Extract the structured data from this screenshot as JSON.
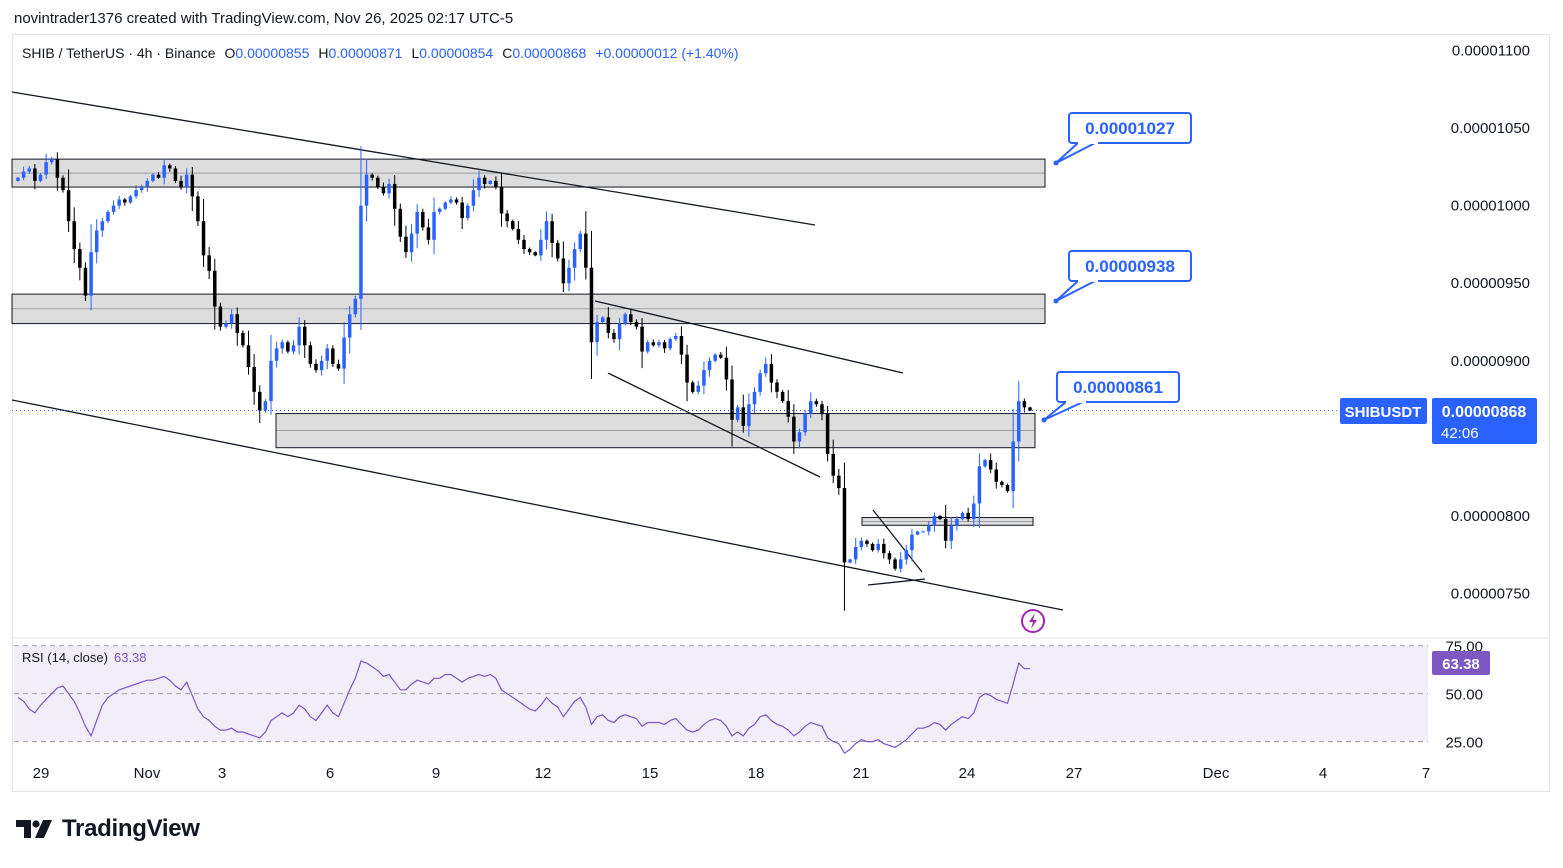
{
  "attribution": "novintrader1376 created with TradingView.com, Nov 26, 2025 02:17 UTC-5",
  "brand": "TradingView",
  "legend": {
    "symbol": "SHIB / TetherUS · 4h · Binance",
    "open_label": "O",
    "open": "0.00000855",
    "high_label": "H",
    "high": "0.00000871",
    "low_label": "L",
    "low": "0.00000854",
    "close_label": "C",
    "close": "0.00000868",
    "change": "+0.00000012 (+1.40%)"
  },
  "price_tag": {
    "symbol": "SHIBUSDT",
    "price": "0.00000868",
    "countdown": "42:06"
  },
  "callouts": [
    {
      "text": "0.00001027",
      "price": 1.027e-05
    },
    {
      "text": "0.00000938",
      "price": 9.38e-06
    },
    {
      "text": "0.00000861",
      "price": 8.61e-06
    }
  ],
  "rsi": {
    "label": "RSI (14, close)",
    "value": "63.38",
    "levels": [
      75,
      50,
      25
    ]
  },
  "colors": {
    "up": "#2962ff",
    "down": "#000000",
    "rsi": "#7e57c2",
    "zone": "#d1d1d1",
    "accent": "#2962ff"
  },
  "chart_data": {
    "type": "candlestick",
    "title": "SHIB / TetherUS · 4h · Binance",
    "x_ticks": [
      "29",
      "Nov",
      "3",
      "6",
      "9",
      "12",
      "15",
      "18",
      "21",
      "24",
      "27",
      "Dec",
      "4",
      "7"
    ],
    "y_ticks": [
      "0.00001100",
      "0.00001050",
      "0.00001000",
      "0.00000950",
      "0.00000900",
      "0.00000850",
      "0.00000800",
      "0.00000750"
    ],
    "ylim": [
      7.22e-06,
      1.11e-05
    ],
    "rsi_ticks": [
      "75.00",
      "50.00",
      "25.00"
    ],
    "rsi_ylim": [
      17,
      79
    ],
    "zones": [
      {
        "top": 1.03e-05,
        "bottom": 1.012e-05
      },
      {
        "top": 9.43e-06,
        "bottom": 9.24e-06
      },
      {
        "top": 8.66e-06,
        "bottom": 8.44e-06
      },
      {
        "top": 7.99e-06,
        "bottom": 7.94e-06
      }
    ],
    "closes": [
      1.018e-05,
      1.022e-05,
      1.024e-05,
      1.016e-05,
      1.02e-05,
      1.028e-05,
      1.03e-05,
      1.018e-05,
      1.01e-05,
      9.9e-06,
      9.72e-06,
      9.6e-06,
      9.42e-06,
      9.7e-06,
      9.84e-06,
      9.9e-06,
      9.96e-06,
      1e-05,
      1.004e-05,
      1.002e-05,
      1.006e-05,
      1.01e-05,
      1.012e-05,
      1.016e-05,
      1.02e-05,
      1.018e-05,
      1.026e-05,
      1.024e-05,
      1.016e-05,
      1.012e-05,
      1.02e-05,
      1.006e-05,
      9.9e-06,
      9.68e-06,
      9.58e-06,
      9.35e-06,
      9.22e-06,
      9.24e-06,
      9.3e-06,
      9.18e-06,
      9.1e-06,
      8.96e-06,
      8.8e-06,
      8.68e-06,
      8.74e-06,
      9e-06,
      9.08e-06,
      9.12e-06,
      9.06e-06,
      9.1e-06,
      9.22e-06,
      9.1e-06,
      8.98e-06,
      8.94e-06,
      9e-06,
      9.08e-06,
      8.98e-06,
      8.95e-06,
      9.15e-06,
      9.3e-06,
      9.4e-06,
      1e-05,
      1.02e-05,
      1.018e-05,
      1.012e-05,
      1.008e-05,
      1.014e-05,
      9.98e-06,
      9.8e-06,
      9.7e-06,
      9.82e-06,
      9.96e-06,
      9.86e-06,
      9.78e-06,
      9.96e-06,
      9.98e-06,
      1.002e-05,
      1.004e-05,
      1.002e-05,
      9.92e-06,
      1e-05,
      1.01e-05,
      1.018e-05,
      1.014e-05,
      1.016e-05,
      1.012e-05,
      9.95e-06,
      9.9e-06,
      9.85e-06,
      9.78e-06,
      9.72e-06,
      9.7e-06,
      9.68e-06,
      9.78e-06,
      9.9e-06,
      9.76e-06,
      9.66e-06,
      9.5e-06,
      9.6e-06,
      9.72e-06,
      9.82e-06,
      9.6e-06,
      9.12e-06,
      9.25e-06,
      9.28e-06,
      9.18e-06,
      9.14e-06,
      9.24e-06,
      9.3e-06,
      9.25e-06,
      9.22e-06,
      9.06e-06,
      9.12e-06,
      9.1e-06,
      9.12e-06,
      9.08e-06,
      9.14e-06,
      9.16e-06,
      9.04e-06,
      8.86e-06,
      8.8e-06,
      8.84e-06,
      8.94e-06,
      9e-06,
      9.04e-06,
      9.02e-06,
      8.88e-06,
      8.62e-06,
      8.7e-06,
      8.58e-06,
      8.72e-06,
      8.8e-06,
      8.92e-06,
      8.98e-06,
      8.86e-06,
      8.8e-06,
      8.74e-06,
      8.64e-06,
      8.48e-06,
      8.54e-06,
      8.66e-06,
      8.74e-06,
      8.72e-06,
      8.66e-06,
      8.4e-06,
      8.26e-06,
      8.18e-06,
      7.7e-06,
      7.72e-06,
      7.8e-06,
      7.84e-06,
      7.82e-06,
      7.78e-06,
      7.82e-06,
      7.76e-06,
      7.72e-06,
      7.66e-06,
      7.72e-06,
      7.78e-06,
      7.88e-06,
      7.9e-06,
      7.9e-06,
      7.94e-06,
      8e-06,
      7.98e-06,
      7.84e-06,
      7.94e-06,
      7.98e-06,
      8.02e-06,
      7.98e-06,
      8.08e-06,
      8.32e-06,
      8.36e-06,
      8.3e-06,
      8.22e-06,
      8.2e-06,
      8.16e-06,
      8.48e-06,
      8.74e-06,
      8.7e-06,
      8.68e-06
    ],
    "rsi_values": [
      48,
      46,
      42,
      40,
      44,
      47,
      50,
      53,
      54,
      50,
      46,
      40,
      33,
      28,
      36,
      44,
      48,
      50,
      52,
      53,
      54,
      55,
      56,
      57,
      57,
      58,
      59,
      57,
      54,
      52,
      56,
      49,
      42,
      38,
      36,
      33,
      31,
      31,
      32,
      30,
      30,
      29,
      28,
      27,
      30,
      36,
      38,
      40,
      38,
      40,
      44,
      42,
      38,
      36,
      40,
      44,
      40,
      38,
      45,
      52,
      58,
      67,
      66,
      64,
      62,
      59,
      60,
      56,
      52,
      52,
      55,
      57,
      56,
      55,
      58,
      58,
      60,
      60,
      58,
      56,
      58,
      59,
      60,
      59,
      60,
      58,
      52,
      50,
      48,
      46,
      44,
      42,
      41,
      44,
      48,
      45,
      43,
      38,
      42,
      46,
      48,
      43,
      34,
      38,
      39,
      36,
      35,
      38,
      39,
      38,
      37,
      33,
      35,
      35,
      35,
      34,
      36,
      37,
      34,
      31,
      30,
      31,
      34,
      36,
      37,
      36,
      33,
      28,
      30,
      28,
      32,
      34,
      38,
      39,
      36,
      34,
      33,
      31,
      28,
      30,
      33,
      35,
      34,
      33,
      27,
      25,
      24,
      19,
      21,
      24,
      26,
      25,
      25,
      26,
      24,
      23,
      22,
      24,
      26,
      29,
      32,
      32,
      33,
      35,
      34,
      31,
      34,
      36,
      38,
      37,
      40,
      48,
      50,
      49,
      47,
      46,
      45,
      55,
      66,
      63,
      63
    ]
  }
}
